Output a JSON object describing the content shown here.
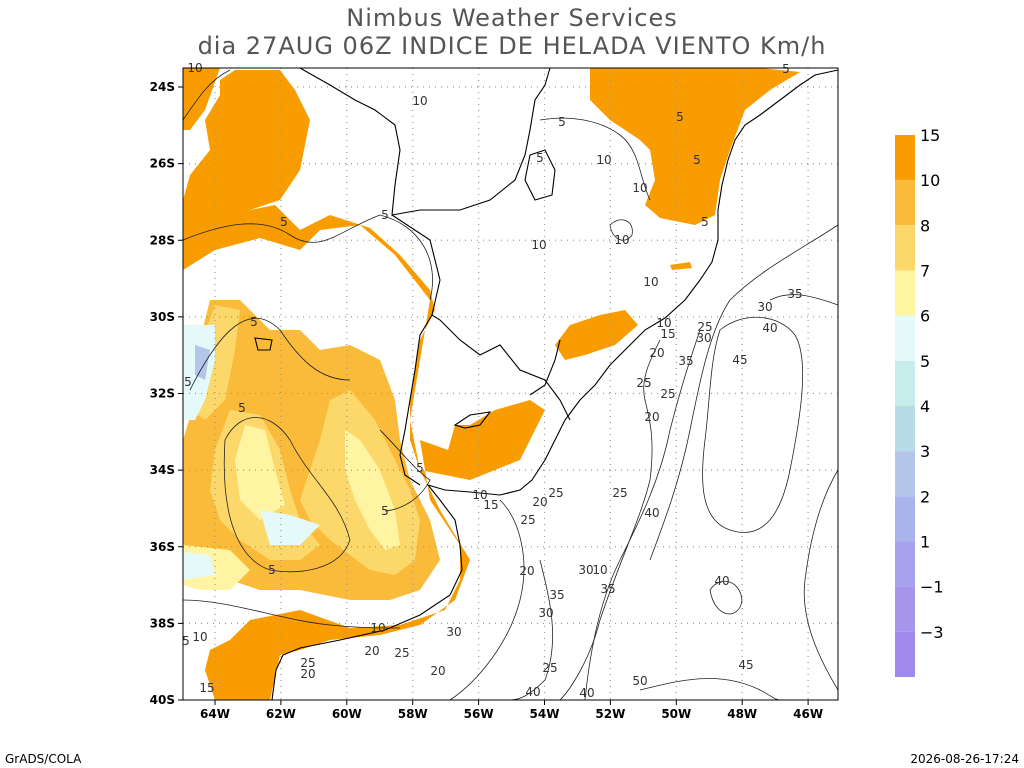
{
  "header": {
    "title": "Nimbus Weather Services",
    "subtitle": "dia 27AUG 06Z INDICE DE HELADA VIENTO Km/h"
  },
  "map": {
    "lat_ticks": [
      "24S",
      "26S",
      "28S",
      "30S",
      "32S",
      "34S",
      "36S",
      "38S",
      "40S"
    ],
    "lon_ticks": [
      "64W",
      "62W",
      "60W",
      "58W",
      "56W",
      "54W",
      "52W",
      "50W",
      "48W",
      "46W"
    ],
    "contour_labels": [
      "10",
      "5",
      "5",
      "10",
      "10",
      "5",
      "5",
      "5",
      "10",
      "10",
      "10",
      "5",
      "5",
      "5",
      "5",
      "5",
      "5",
      "5",
      "5",
      "10",
      "10",
      "15",
      "20",
      "25",
      "25",
      "25",
      "20",
      "25",
      "25",
      "20",
      "15",
      "10",
      "35",
      "30",
      "25",
      "30",
      "35",
      "40",
      "45",
      "40",
      "20",
      "30",
      "10",
      "35",
      "35",
      "30",
      "30",
      "25",
      "20",
      "20",
      "25",
      "20",
      "25",
      "40",
      "40",
      "50",
      "45",
      "40",
      "15",
      "10",
      "5",
      "10",
      "5"
    ]
  },
  "colorbar": {
    "labels": [
      "15",
      "10",
      "8",
      "7",
      "6",
      "5",
      "4",
      "3",
      "2",
      "1",
      "−1",
      "−3"
    ],
    "colors": [
      "#f89c00",
      "#fbbb3a",
      "#fcd86a",
      "#fff4a2",
      "#e4fafa",
      "#c6eceb",
      "#b7dbe8",
      "#b3c6ea",
      "#a9b3ec",
      "#a7a2ee",
      "#a596ec",
      "#9f89ec"
    ]
  },
  "footer": {
    "left": "GrADS/COLA",
    "right": "2026-08-26-17:24"
  }
}
